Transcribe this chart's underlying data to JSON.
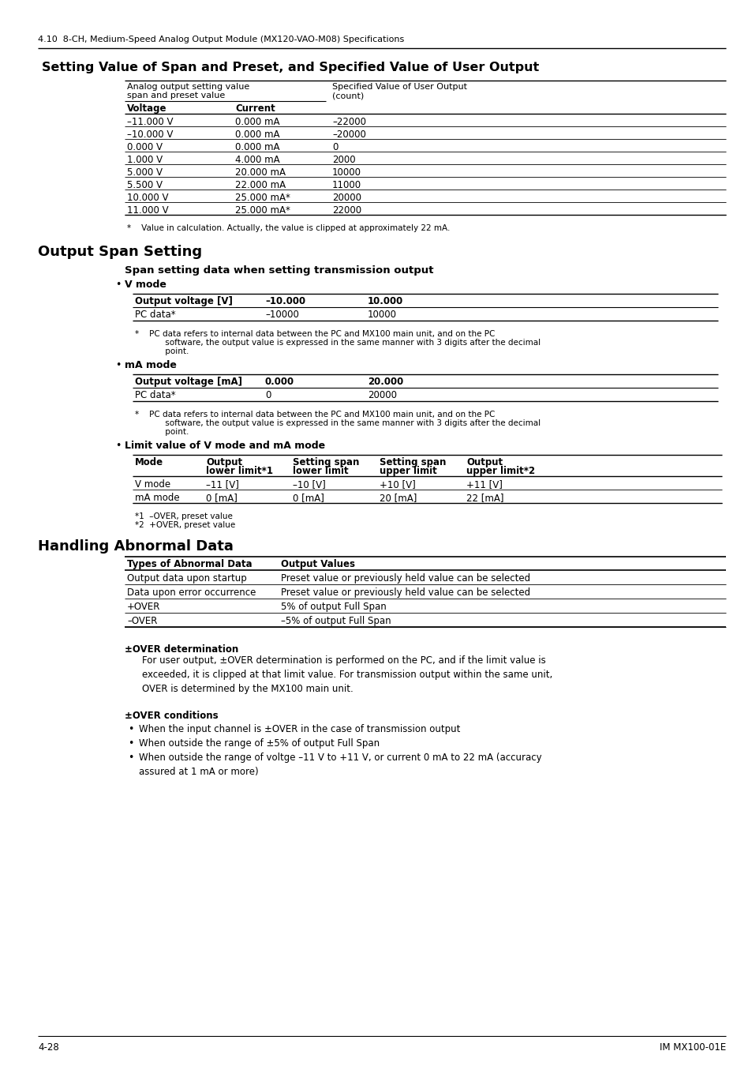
{
  "page_header": "4.10  8-CH, Medium-Speed Analog Output Module (MX120-VAO-M08) Specifications",
  "section1_title": "Setting Value of Span and Preset, and Specified Value of User Output",
  "table1_rows": [
    [
      "–11.000 V",
      "0.000 mA",
      "–22000"
    ],
    [
      "–10.000 V",
      "0.000 mA",
      "–20000"
    ],
    [
      "0.000 V",
      "0.000 mA",
      "0"
    ],
    [
      "1.000 V",
      "4.000 mA",
      "2000"
    ],
    [
      "5.000 V",
      "20.000 mA",
      "10000"
    ],
    [
      "5.500 V",
      "22.000 mA",
      "11000"
    ],
    [
      "10.000 V",
      "25.000 mA*",
      "20000"
    ],
    [
      "11.000 V",
      "25.000 mA*",
      "22000"
    ]
  ],
  "table1_footnote": "*    Value in calculation. Actually, the value is clipped at approximately 22 mA.",
  "section2_title": "Output Span Setting",
  "subsection2_title": "Span setting data when setting transmission output",
  "bullet1": "V mode",
  "table2_header_col1": "Output voltage [V]",
  "table2_header_col2": "–10.000",
  "table2_header_col3": "10.000",
  "table2_row_col1": "PC data*",
  "table2_row_col2": "–10000",
  "table2_row_col3": "10000",
  "table2_footnote_line1": "*    PC data refers to internal data between the PC and MX100 main unit, and on the PC",
  "table2_footnote_line2": "     software, the output value is expressed in the same manner with 3 digits after the decimal",
  "table2_footnote_line3": "     point.",
  "bullet2": "mA mode",
  "table3_header_col1": "Output voltage [mA]",
  "table3_header_col2": "0.000",
  "table3_header_col3": "20.000",
  "table3_row_col1": "PC data*",
  "table3_row_col2": "0",
  "table3_row_col3": "20000",
  "table3_footnote_line1": "*    PC data refers to internal data between the PC and MX100 main unit, and on the PC",
  "table3_footnote_line2": "     software, the output value is expressed in the same manner with 3 digits after the decimal",
  "table3_footnote_line3": "     point.",
  "bullet3": "Limit value of V mode and mA mode",
  "table4_header": [
    "Mode",
    "Output\nlower limit*1",
    "Setting span\nlower limit",
    "Setting span\nupper limit",
    "Output\nupper limit*2"
  ],
  "table4_rows": [
    [
      "V mode",
      "–11 [V]",
      "–10 [V]",
      "+10 [V]",
      "+11 [V]"
    ],
    [
      "mA mode",
      "0 [mA]",
      "0 [mA]",
      "20 [mA]",
      "22 [mA]"
    ]
  ],
  "table4_footnote1": "*1  –OVER, preset value",
  "table4_footnote2": "*2  +OVER, preset value",
  "section3_title": "Handling Abnormal Data",
  "table5_header": [
    "Types of Abnormal Data",
    "Output Values"
  ],
  "table5_rows": [
    [
      "Output data upon startup",
      "Preset value or previously held value can be selected"
    ],
    [
      "Data upon error occurrence",
      "Preset value or previously held value can be selected"
    ],
    [
      "+OVER",
      "5% of output Full Span"
    ],
    [
      "–OVER",
      "–5% of output Full Span"
    ]
  ],
  "subsection3_title1": "±OVER determination",
  "para3_line1": "For user output, ±OVER determination is performed on the PC, and if the limit value is",
  "para3_line2": "exceeded, it is clipped at that limit value. For transmission output within the same unit,",
  "para3_line3": "OVER is determined by the MX100 main unit.",
  "subsection3_title2": "±OVER conditions",
  "bullet3_1": "When the input channel is ±OVER in the case of transmission output",
  "bullet3_2": "When outside the range of ±5% of output Full Span",
  "bullet3_3a": "When outside the range of voltge –11 V to +11 V, or current 0 mA to 22 mA (accuracy",
  "bullet3_3b": "assured at 1 mA or more)",
  "page_footer_left": "4-28",
  "page_footer_right": "IM MX100-01E"
}
